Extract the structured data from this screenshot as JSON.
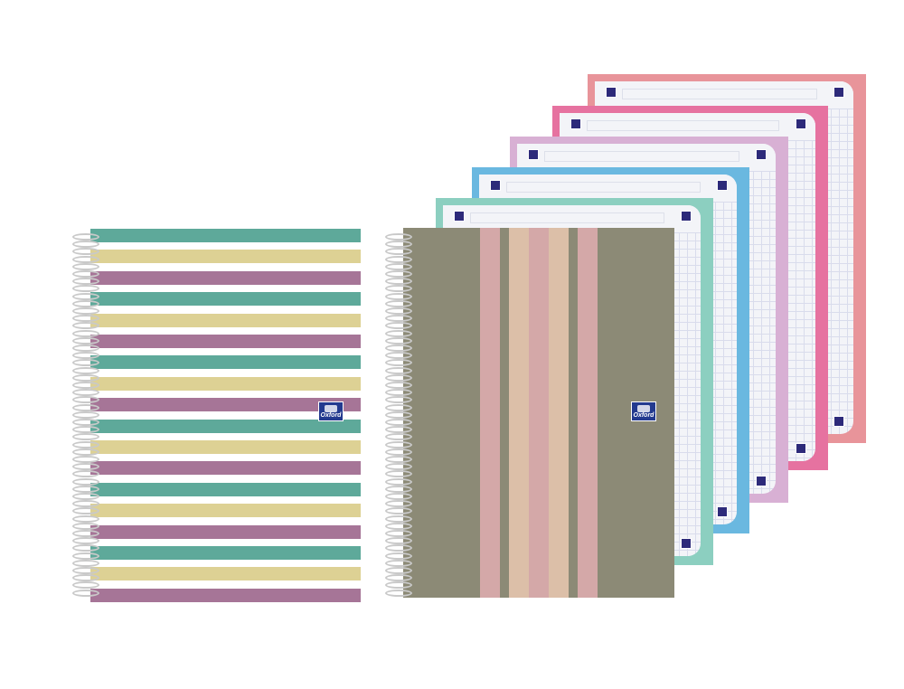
{
  "brand": "Oxford",
  "left_notebook": {
    "stripe_colors": [
      "#5ea99a",
      "#ddd194",
      "#a67597"
    ],
    "stripe_count": 18
  },
  "right_notebook": {
    "cover_color": "#8c8a76",
    "stripe_colors": [
      "#d4a8a8",
      "#dcbfa8",
      "#d4a8a8",
      "#dcbfa8",
      "#d4a8a8"
    ]
  },
  "sheets": {
    "frame_colors": [
      "#8ccfc0",
      "#6ab8e0",
      "#d8b0d4",
      "#e672a0",
      "#e8949a"
    ],
    "grid_color": "#d9dcec",
    "corner_mark_color": "#2d2a7a"
  }
}
